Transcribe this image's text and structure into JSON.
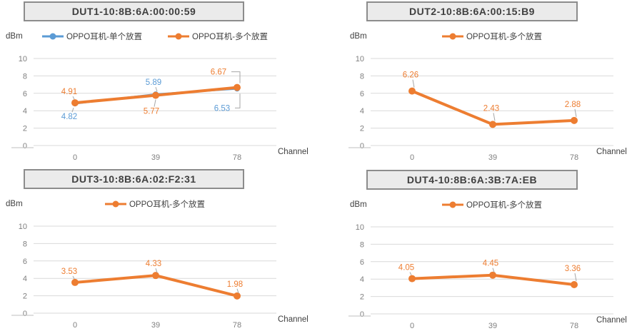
{
  "colors": {
    "blue": "#5B9BD5",
    "orange": "#ED7D31",
    "grid_line": "#D9D9D9",
    "axis_line": "#BFBFBF",
    "tick_text": "#7F7F7F",
    "label_text": "#404040",
    "leader_line": "#A6A6A6",
    "title_fill": "#EBEBEB",
    "title_border": "#8C8C8C"
  },
  "chart_data": [
    {
      "type": "line",
      "title": "DUT1-10:8B:6A:00:00:59",
      "ylabel": "dBm",
      "xlabel": "Channel",
      "categories": [
        "0",
        "39",
        "78"
      ],
      "ylim": [
        0,
        10
      ],
      "y_ticks": [
        0,
        2,
        4,
        6,
        8,
        10
      ],
      "grid": true,
      "legend_position": "top",
      "series": [
        {
          "name": "OPPO耳机-单个放置",
          "color": "blue",
          "values": [
            4.82,
            5.89,
            6.53
          ],
          "label_pos": [
            "below-left",
            "above",
            "callout-below"
          ]
        },
        {
          "name": "OPPO耳机-多个放置",
          "color": "orange",
          "values": [
            4.91,
            5.77,
            6.67
          ],
          "label_pos": [
            "above-left",
            "below",
            "callout-above"
          ]
        }
      ]
    },
    {
      "type": "line",
      "title": "DUT2-10:8B:6A:00:15:B9",
      "ylabel": "dBm",
      "xlabel": "Channel",
      "categories": [
        "0",
        "39",
        "78"
      ],
      "ylim": [
        0,
        10
      ],
      "y_ticks": [
        0,
        2,
        4,
        6,
        8,
        10
      ],
      "grid": true,
      "legend_position": "top",
      "series": [
        {
          "name": "OPPO耳机-多个放置",
          "color": "orange",
          "values": [
            6.26,
            2.43,
            2.88
          ],
          "label_pos": [
            "above-far",
            "above-far",
            "above-far"
          ]
        }
      ]
    },
    {
      "type": "line",
      "title": "DUT3-10:8B:6A:02:F2:31",
      "ylabel": "dBm",
      "xlabel": "Channel",
      "categories": [
        "0",
        "39",
        "78"
      ],
      "ylim": [
        0,
        10
      ],
      "y_ticks": [
        0,
        2,
        4,
        6,
        8,
        10
      ],
      "grid": true,
      "legend_position": "top",
      "series": [
        {
          "name": "OPPO耳机-多个放置",
          "color": "orange",
          "values": [
            3.53,
            4.33,
            1.98
          ],
          "label_pos": [
            "above-left",
            "above",
            "above"
          ]
        }
      ]
    },
    {
      "type": "line",
      "title": "DUT4-10:8B:6A:3B:7A:EB",
      "ylabel": "dBm",
      "xlabel": "Channel",
      "categories": [
        "0",
        "39",
        "78"
      ],
      "ylim": [
        0,
        10
      ],
      "y_ticks": [
        0,
        2,
        4,
        6,
        8,
        10
      ],
      "grid": true,
      "legend_position": "top",
      "series": [
        {
          "name": "OPPO耳机-多个放置",
          "color": "orange",
          "values": [
            4.05,
            4.45,
            3.36
          ],
          "label_pos": [
            "above-left",
            "above",
            "above-far"
          ]
        }
      ]
    }
  ]
}
